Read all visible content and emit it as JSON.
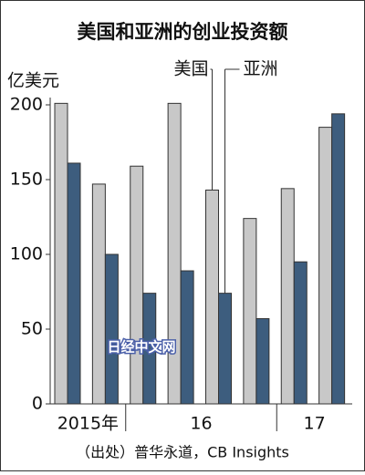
{
  "chart_data": {
    "type": "bar",
    "title": "美国和亚洲的创业投资额",
    "y_label": "亿美元",
    "groups": [
      {
        "label": "2015年",
        "categories": [
          null,
          null
        ]
      },
      {
        "label": "16",
        "categories": [
          null,
          null,
          null,
          null
        ]
      },
      {
        "label": "17",
        "categories": [
          null,
          null
        ]
      }
    ],
    "series": [
      {
        "name": "美国",
        "color": "#c8c8c8",
        "values": [
          201,
          147,
          159,
          201,
          143,
          124,
          144,
          185
        ]
      },
      {
        "name": "亚洲",
        "color": "#3d5d7e",
        "values": [
          161,
          100,
          74,
          89,
          74,
          57,
          95,
          194
        ]
      }
    ],
    "ylim": [
      0,
      200
    ],
    "yticks": [
      0,
      50,
      100,
      150,
      200
    ],
    "grid": false,
    "source": "（出处）普华永道，CB Insights",
    "watermark": "日经中文网"
  }
}
